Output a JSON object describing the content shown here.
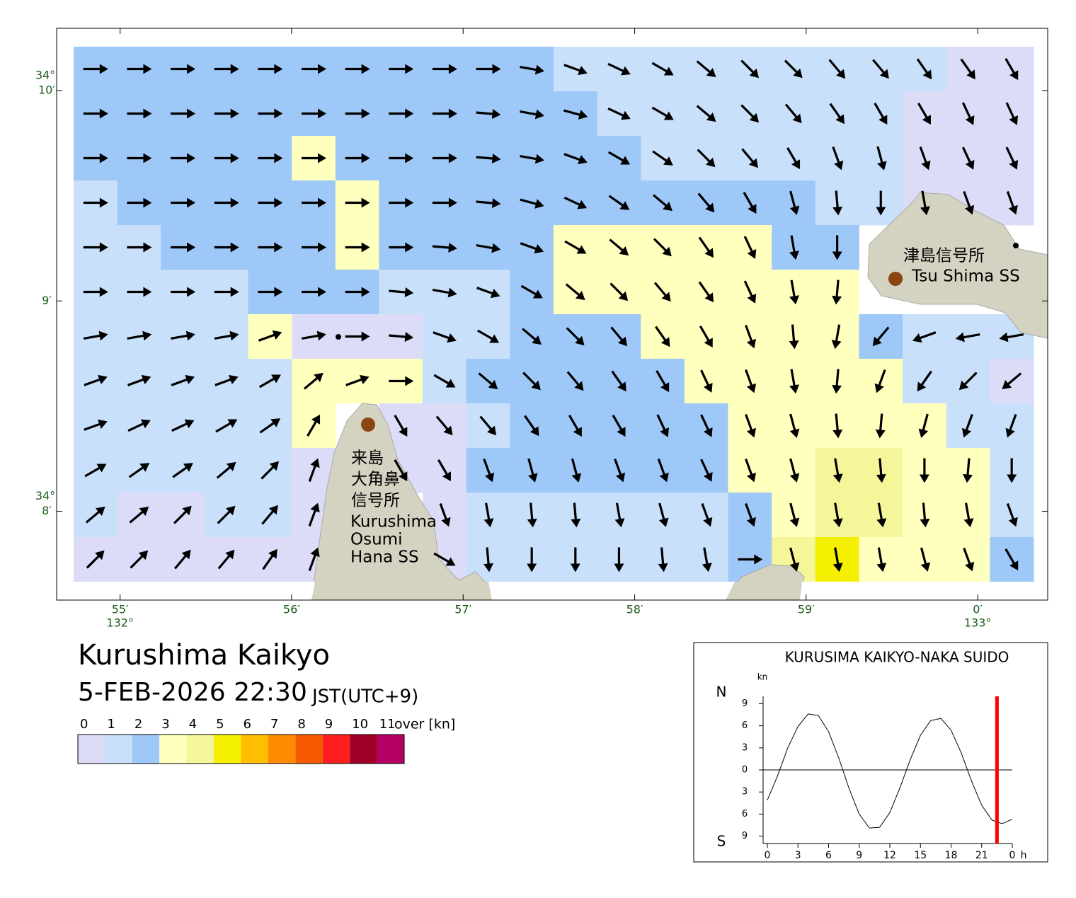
{
  "map": {
    "title": "Kurushima Kaikyo",
    "datetime": "5-FEB-2026 22:30",
    "timezone": "JST(UTC+9)",
    "xlim": [
      132.9105,
      133.0068
    ],
    "ylim": [
      34.1263,
      34.1716
    ],
    "lon_ticks": [
      {
        "value": 132.91667,
        "label": "55′"
      },
      {
        "value": 132.93333,
        "label": "56′"
      },
      {
        "value": 132.95,
        "label": "57′"
      },
      {
        "value": 132.96667,
        "label": "58′"
      },
      {
        "value": 132.98333,
        "label": "59′"
      },
      {
        "value": 133.0,
        "label": "0′"
      }
    ],
    "lat_ticks": [
      {
        "value": 34.16667,
        "label": "10′"
      },
      {
        "value": 34.15,
        "label": "9′"
      },
      {
        "value": 34.13333,
        "label": "8′"
      }
    ],
    "lat_degree_label": "34°",
    "lon_degree_labels": [
      "132°",
      "133°"
    ],
    "stations": [
      {
        "name_ja": [
          "津島信号所"
        ],
        "name_en": [
          "Tsu Shima SS"
        ]
      },
      {
        "name_ja": [
          "来島",
          "大角鼻",
          "信号所"
        ],
        "name_en": [
          "Kurushima",
          "Osumi",
          "Hana SS"
        ]
      }
    ],
    "speed_class": [
      [
        2,
        2,
        2,
        2,
        2,
        2,
        2,
        2,
        2,
        2,
        2,
        1,
        1,
        1,
        1,
        1,
        1,
        1,
        1,
        1,
        0,
        0
      ],
      [
        2,
        2,
        2,
        2,
        2,
        2,
        2,
        2,
        2,
        2,
        2,
        2,
        1,
        1,
        1,
        1,
        1,
        1,
        1,
        0,
        0,
        0
      ],
      [
        2,
        2,
        2,
        2,
        2,
        3,
        2,
        2,
        2,
        2,
        2,
        2,
        2,
        1,
        1,
        1,
        1,
        1,
        1,
        0,
        0,
        0
      ],
      [
        1,
        2,
        2,
        2,
        2,
        2,
        3,
        2,
        2,
        2,
        2,
        2,
        2,
        2,
        2,
        2,
        2,
        1,
        1,
        0,
        0,
        0
      ],
      [
        1,
        1,
        2,
        2,
        2,
        2,
        3,
        2,
        2,
        2,
        2,
        3,
        3,
        3,
        3,
        3,
        2,
        2,
        null,
        null,
        null,
        null
      ],
      [
        1,
        1,
        1,
        1,
        2,
        2,
        2,
        1,
        1,
        1,
        2,
        3,
        3,
        3,
        3,
        3,
        3,
        3,
        null,
        null,
        null,
        null
      ],
      [
        1,
        1,
        1,
        1,
        3,
        0,
        0,
        0,
        1,
        1,
        2,
        2,
        2,
        3,
        3,
        3,
        3,
        3,
        2,
        1,
        1,
        1
      ],
      [
        1,
        1,
        1,
        1,
        1,
        3,
        3,
        3,
        1,
        2,
        2,
        2,
        2,
        2,
        3,
        3,
        3,
        3,
        3,
        1,
        1,
        0
      ],
      [
        1,
        1,
        1,
        1,
        1,
        3,
        null,
        0,
        0,
        1,
        2,
        2,
        2,
        2,
        2,
        3,
        3,
        3,
        3,
        3,
        1,
        1
      ],
      [
        1,
        1,
        1,
        1,
        1,
        0,
        null,
        0,
        0,
        2,
        2,
        2,
        2,
        2,
        2,
        3,
        3,
        4,
        4,
        3,
        3,
        1
      ],
      [
        1,
        0,
        0,
        1,
        1,
        0,
        null,
        null,
        0,
        1,
        1,
        1,
        1,
        1,
        1,
        2,
        3,
        4,
        4,
        3,
        3,
        1
      ],
      [
        0,
        0,
        0,
        0,
        0,
        0,
        null,
        null,
        0,
        1,
        1,
        1,
        1,
        1,
        1,
        2,
        4,
        5,
        3,
        3,
        3,
        2
      ]
    ],
    "direction_deg": [
      [
        90,
        90,
        90,
        90,
        90,
        90,
        90,
        90,
        90,
        90,
        100,
        110,
        115,
        120,
        130,
        135,
        135,
        140,
        140,
        145,
        145,
        150
      ],
      [
        90,
        90,
        90,
        90,
        90,
        90,
        90,
        90,
        90,
        95,
        100,
        105,
        115,
        120,
        130,
        135,
        140,
        145,
        150,
        150,
        155,
        155
      ],
      [
        90,
        90,
        90,
        90,
        90,
        90,
        90,
        90,
        90,
        95,
        100,
        110,
        120,
        125,
        135,
        140,
        150,
        160,
        165,
        160,
        155,
        155
      ],
      [
        90,
        90,
        90,
        90,
        90,
        90,
        90,
        90,
        90,
        95,
        105,
        115,
        125,
        130,
        140,
        150,
        165,
        175,
        180,
        170,
        160,
        160
      ],
      [
        90,
        90,
        90,
        90,
        90,
        90,
        90,
        90,
        95,
        100,
        110,
        120,
        130,
        135,
        145,
        155,
        170,
        180,
        null,
        null,
        null,
        null
      ],
      [
        90,
        90,
        90,
        90,
        90,
        90,
        90,
        95,
        100,
        110,
        120,
        130,
        135,
        140,
        145,
        155,
        170,
        185,
        null,
        null,
        null,
        null
      ],
      [
        80,
        80,
        80,
        80,
        70,
        80,
        90,
        95,
        110,
        120,
        130,
        135,
        140,
        145,
        150,
        160,
        175,
        190,
        220,
        250,
        260,
        260
      ],
      [
        70,
        70,
        70,
        70,
        60,
        50,
        70,
        90,
        120,
        130,
        135,
        140,
        145,
        150,
        155,
        160,
        170,
        185,
        200,
        215,
        225,
        230
      ],
      [
        70,
        65,
        65,
        60,
        55,
        30,
        null,
        150,
        140,
        140,
        145,
        150,
        150,
        155,
        155,
        160,
        165,
        175,
        185,
        195,
        200,
        200
      ],
      [
        60,
        55,
        55,
        50,
        45,
        20,
        null,
        150,
        150,
        160,
        165,
        165,
        160,
        160,
        155,
        160,
        165,
        170,
        175,
        180,
        185,
        180
      ],
      [
        50,
        50,
        45,
        45,
        40,
        20,
        null,
        null,
        160,
        170,
        175,
        175,
        170,
        165,
        160,
        160,
        165,
        170,
        170,
        175,
        170,
        160
      ],
      [
        45,
        45,
        40,
        40,
        35,
        20,
        null,
        null,
        120,
        175,
        180,
        180,
        180,
        175,
        170,
        90,
        165,
        170,
        170,
        165,
        160,
        150
      ]
    ]
  },
  "legend": {
    "bins": [
      0,
      1,
      2,
      3,
      4,
      5,
      6,
      7,
      8,
      9,
      10,
      11
    ],
    "over_label": "over [kn]",
    "colors": [
      "#dcdcf8",
      "#c8e0fa",
      "#9ec8f8",
      "#ffffbe",
      "#f5f59a",
      "#f5f000",
      "#ffbe00",
      "#ff8c00",
      "#f55a00",
      "#ff1e1e",
      "#a00028",
      "#b40064"
    ]
  },
  "chart_data": {
    "type": "line",
    "title": "KURUSIMA KAIKYO-NAKA SUIDO",
    "y_unit": "kn",
    "x_unit": "h",
    "north_label": "N",
    "south_label": "S",
    "color": "#000000",
    "marker_color": "#ff0000",
    "x": [
      0,
      1,
      2,
      3,
      4,
      5,
      6,
      7,
      8,
      9,
      10,
      11,
      12,
      13,
      14,
      15,
      16,
      17,
      18,
      19,
      20,
      21,
      22,
      23,
      24
    ],
    "values": [
      -4.1,
      -0.8,
      3.0,
      5.9,
      7.6,
      7.4,
      5.2,
      1.6,
      -2.5,
      -6.0,
      -7.9,
      -7.8,
      -5.8,
      -2.4,
      1.4,
      4.7,
      6.7,
      7.0,
      5.4,
      2.3,
      -1.5,
      -4.8,
      -6.8,
      -7.3,
      -6.7
    ],
    "current_time": 22.5,
    "xlim": [
      0,
      24
    ],
    "ylim": [
      -10,
      10
    ],
    "xticks": [
      0,
      3,
      6,
      9,
      12,
      15,
      18,
      21,
      {
        "value": 24,
        "label": "0"
      }
    ],
    "yticks": [
      9,
      6,
      3,
      0,
      {
        "value": -3,
        "label": "3"
      },
      {
        "value": -6,
        "label": "6"
      },
      {
        "value": -9,
        "label": "9"
      }
    ]
  }
}
